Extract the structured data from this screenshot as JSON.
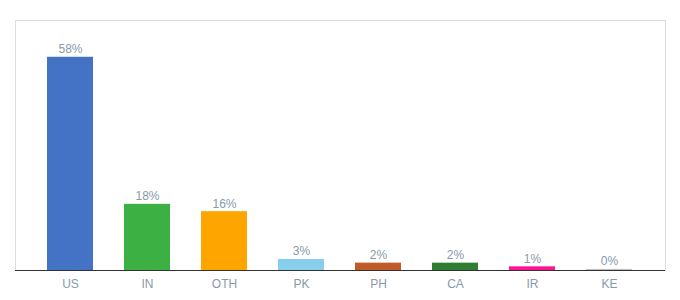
{
  "chart_data": {
    "type": "bar",
    "categories": [
      "US",
      "IN",
      "OTH",
      "PK",
      "PH",
      "CA",
      "IR",
      "KE"
    ],
    "values": [
      58,
      18,
      16,
      3,
      2,
      2,
      1,
      0.3
    ],
    "value_labels": [
      "58%",
      "18%",
      "16%",
      "3%",
      "2%",
      "2%",
      "1%",
      "0%"
    ],
    "colors": [
      "#4472C4",
      "#3CB043",
      "#FFA500",
      "#87CEEB",
      "#C05A28",
      "#2E7D32",
      "#FF1493",
      "#C0C0C0"
    ],
    "ylim": [
      0,
      68
    ],
    "data_labels": true,
    "tick_labels": "x",
    "grid": false
  }
}
